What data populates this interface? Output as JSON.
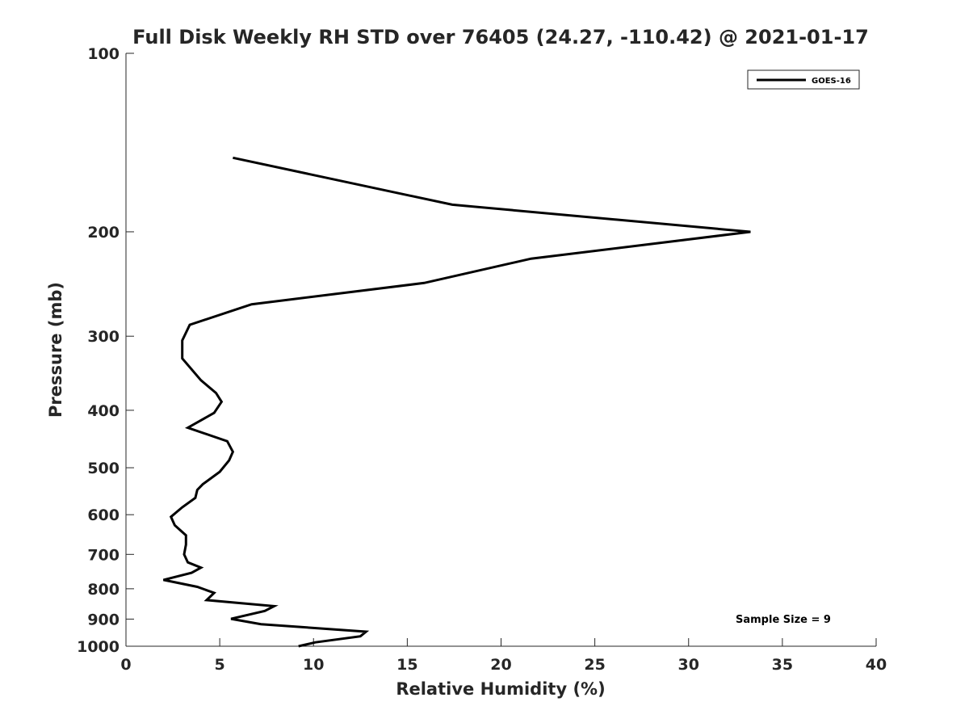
{
  "chart_data": {
    "type": "line",
    "title": "Full Disk Weekly RH STD over 76405 (24.27, -110.42) @ 2021-01-17",
    "xlabel": "Relative Humidity (%)",
    "ylabel": "Pressure (mb)",
    "xlim": [
      0,
      40
    ],
    "ylim": [
      100,
      1000
    ],
    "y_scale": "log",
    "y_reversed": true,
    "x_ticks": [
      "0",
      "5",
      "10",
      "15",
      "20",
      "25",
      "30",
      "35",
      "40"
    ],
    "y_ticks": [
      "100",
      "200",
      "300",
      "400",
      "500",
      "600",
      "700",
      "800",
      "900",
      "1000"
    ],
    "grid": false,
    "legend": {
      "position": "top-right",
      "entries": [
        "GOES-16"
      ]
    },
    "annotation": "Sample Size = 9",
    "series": [
      {
        "name": "GOES-16",
        "color": "#000000",
        "x": [
          5.7,
          17.4,
          33.3,
          21.6,
          15.9,
          6.7,
          3.4,
          3.0,
          3.0,
          4.0,
          4.8,
          5.1,
          4.7,
          3.3,
          5.4,
          5.7,
          5.5,
          5.0,
          4.1,
          3.8,
          3.7,
          3.0,
          2.4,
          2.6,
          3.2,
          3.2,
          3.1,
          3.3,
          4.0,
          3.5,
          2.0,
          3.8,
          4.7,
          4.3,
          7.9,
          7.4,
          5.6,
          7.2,
          12.8,
          12.5,
          10.1,
          9.2
        ],
        "y": [
          150,
          180,
          200,
          222,
          244,
          265,
          287,
          305,
          327,
          356,
          374,
          387,
          404,
          428,
          451,
          470,
          486,
          508,
          533,
          545,
          562,
          583,
          605,
          625,
          650,
          674,
          700,
          722,
          737,
          752,
          773,
          794,
          813,
          836,
          856,
          872,
          899,
          918,
          945,
          962,
          985,
          1000
        ]
      }
    ]
  }
}
